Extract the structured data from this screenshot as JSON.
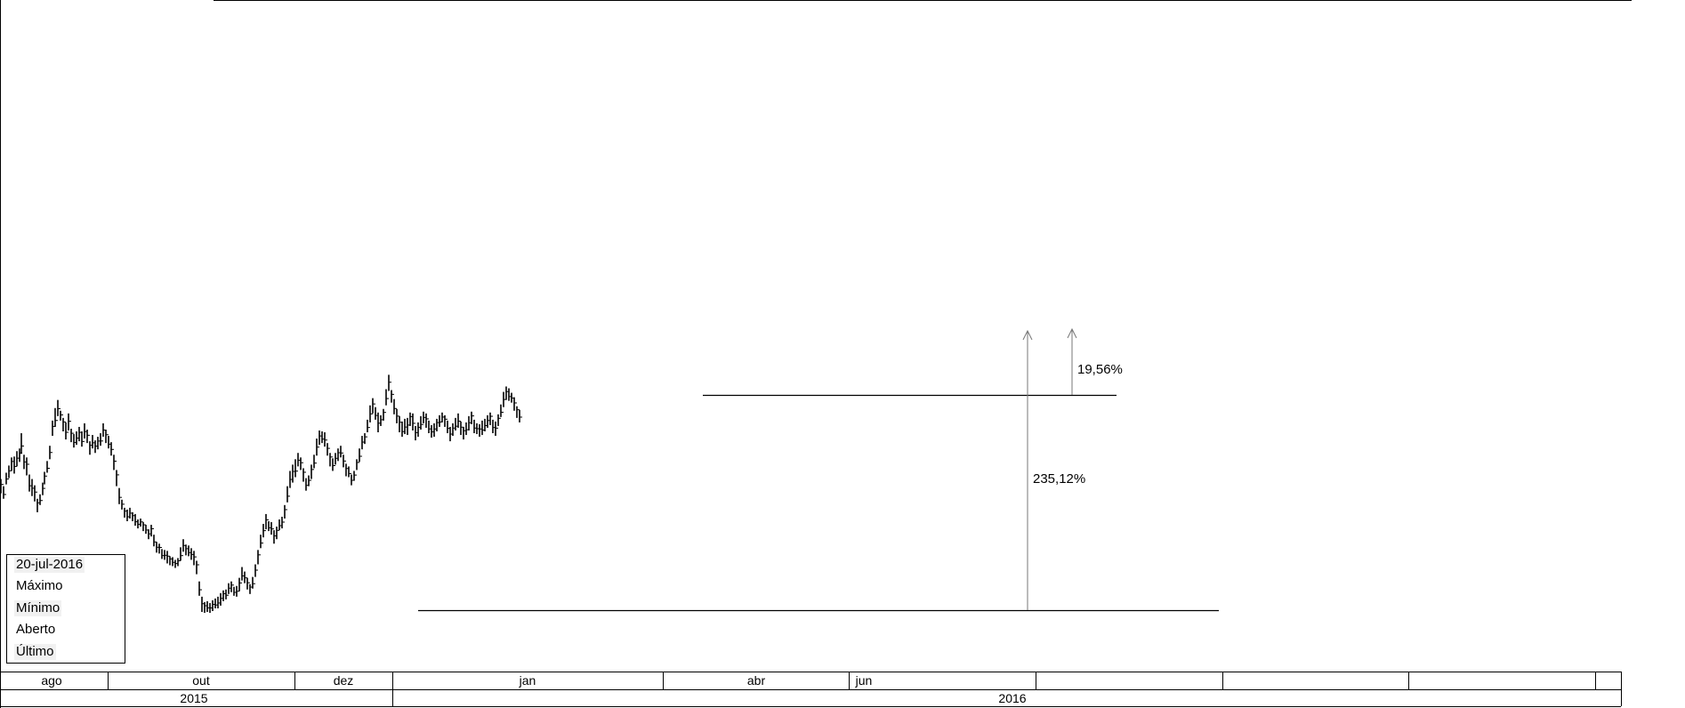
{
  "chart_data": {
    "type": "ohlc",
    "series": [
      {
        "points": [
          [
            -3.0,
            1.29,
            1.48
          ],
          [
            -2.6,
            1.45,
            1.62
          ],
          [
            -2.2,
            1.4,
            1.57
          ],
          [
            -1.8,
            1.27,
            1.4
          ],
          [
            -1.4,
            1.3,
            1.42
          ],
          [
            -1.0,
            1.28,
            1.43
          ],
          [
            -0.7,
            1.3,
            1.46
          ],
          [
            -0.4,
            1.24,
            1.38
          ],
          [
            -0.1,
            1.4,
            1.53
          ],
          [
            0.2,
            1.47,
            1.61
          ],
          [
            0.5,
            1.55,
            1.7
          ],
          [
            0.8,
            1.52,
            1.71
          ],
          [
            1.1,
            1.6,
            1.77
          ],
          [
            1.4,
            1.65,
            1.8
          ],
          [
            1.6,
            1.74,
            1.97
          ],
          [
            1.9,
            1.57,
            1.73
          ],
          [
            2.2,
            1.5,
            1.7
          ],
          [
            2.5,
            1.32,
            1.51
          ],
          [
            2.8,
            1.27,
            1.46
          ],
          [
            3.1,
            1.21,
            1.39
          ],
          [
            3.4,
            1.09,
            1.24
          ],
          [
            3.7,
            1.17,
            1.29
          ],
          [
            4.0,
            1.28,
            1.42
          ],
          [
            4.2,
            1.4,
            1.54
          ],
          [
            4.5,
            1.53,
            1.66
          ],
          [
            4.8,
            1.68,
            1.83
          ],
          [
            5.1,
            1.94,
            2.11
          ],
          [
            5.4,
            2.04,
            2.25
          ],
          [
            5.7,
            2.16,
            2.34
          ],
          [
            6.0,
            2.11,
            2.22
          ],
          [
            6.3,
            1.99,
            2.14
          ],
          [
            6.6,
            1.9,
            2.09
          ],
          [
            6.9,
            2.0,
            2.19
          ],
          [
            7.2,
            1.87,
            2.02
          ],
          [
            7.5,
            1.81,
            1.96
          ],
          [
            7.8,
            1.84,
            1.99
          ],
          [
            8.1,
            1.88,
            2.04
          ],
          [
            8.4,
            1.82,
            1.99
          ],
          [
            8.7,
            1.91,
            2.08
          ],
          [
            9.0,
            1.86,
            2.01
          ],
          [
            9.3,
            1.73,
            1.88
          ],
          [
            9.6,
            1.8,
            1.95
          ],
          [
            9.9,
            1.75,
            1.89
          ],
          [
            10.2,
            1.79,
            1.93
          ],
          [
            10.5,
            1.83,
            1.97
          ],
          [
            10.8,
            1.93,
            2.08
          ],
          [
            11.1,
            1.86,
            2.01
          ],
          [
            11.4,
            1.8,
            1.94
          ],
          [
            11.7,
            1.72,
            1.87
          ],
          [
            12.0,
            1.56,
            1.73
          ],
          [
            12.3,
            1.38,
            1.56
          ],
          [
            12.6,
            1.18,
            1.36
          ],
          [
            12.9,
            1.12,
            1.23
          ],
          [
            13.2,
            1.03,
            1.14
          ],
          [
            13.5,
            0.99,
            1.12
          ],
          [
            13.8,
            1.02,
            1.14
          ],
          [
            14.1,
            0.99,
            1.09
          ],
          [
            14.4,
            0.94,
            1.07
          ],
          [
            14.7,
            0.91,
            1.01
          ],
          [
            15.0,
            0.93,
            1.02
          ],
          [
            15.3,
            0.88,
            0.98
          ],
          [
            15.6,
            0.85,
            0.95
          ],
          [
            15.9,
            0.79,
            0.9
          ],
          [
            16.2,
            0.82,
            0.95
          ],
          [
            16.5,
            0.71,
            0.84
          ],
          [
            16.8,
            0.64,
            0.76
          ],
          [
            17.1,
            0.63,
            0.74
          ],
          [
            17.4,
            0.57,
            0.68
          ],
          [
            17.7,
            0.56,
            0.67
          ],
          [
            18.0,
            0.52,
            0.66
          ],
          [
            18.3,
            0.5,
            0.6
          ],
          [
            18.6,
            0.49,
            0.59
          ],
          [
            18.9,
            0.47,
            0.56
          ],
          [
            19.2,
            0.49,
            0.58
          ],
          [
            19.5,
            0.55,
            0.7
          ],
          [
            19.8,
            0.65,
            0.79
          ],
          [
            20.1,
            0.61,
            0.73
          ],
          [
            20.4,
            0.6,
            0.72
          ],
          [
            20.7,
            0.56,
            0.69
          ],
          [
            21.0,
            0.5,
            0.66
          ],
          [
            21.3,
            0.4,
            0.55
          ],
          [
            21.6,
            0.16,
            0.32
          ],
          [
            21.9,
            -0.02,
            0.15
          ],
          [
            22.2,
            -0.03,
            0.09
          ],
          [
            22.5,
            -0.02,
            0.1
          ],
          [
            22.8,
            -0.03,
            0.08
          ],
          [
            23.1,
            -0.01,
            0.11
          ],
          [
            23.4,
            0.02,
            0.13
          ],
          [
            23.7,
            0.02,
            0.15
          ],
          [
            24.0,
            0.05,
            0.19
          ],
          [
            24.3,
            0.1,
            0.22
          ],
          [
            24.6,
            0.12,
            0.23
          ],
          [
            24.9,
            0.18,
            0.3
          ],
          [
            25.2,
            0.2,
            0.32
          ],
          [
            25.5,
            0.16,
            0.26
          ],
          [
            25.8,
            0.15,
            0.27
          ],
          [
            26.1,
            0.21,
            0.36
          ],
          [
            26.4,
            0.33,
            0.48
          ],
          [
            26.7,
            0.3,
            0.43
          ],
          [
            27.0,
            0.23,
            0.36
          ],
          [
            27.3,
            0.18,
            0.29
          ],
          [
            27.6,
            0.24,
            0.37
          ],
          [
            27.9,
            0.37,
            0.51
          ],
          [
            28.2,
            0.51,
            0.67
          ],
          [
            28.5,
            0.69,
            0.84
          ],
          [
            28.8,
            0.81,
            0.96
          ],
          [
            29.1,
            0.9,
            1.07
          ],
          [
            29.4,
            0.88,
            0.99
          ],
          [
            29.7,
            0.84,
            0.98
          ],
          [
            30.0,
            0.74,
            0.89
          ],
          [
            30.3,
            0.79,
            0.93
          ],
          [
            30.6,
            0.89,
            1.01
          ],
          [
            30.9,
            0.91,
            1.04
          ],
          [
            31.2,
            1.02,
            1.17
          ],
          [
            31.5,
            1.2,
            1.38
          ],
          [
            31.8,
            1.36,
            1.55
          ],
          [
            32.1,
            1.42,
            1.62
          ],
          [
            32.4,
            1.48,
            1.68
          ],
          [
            32.7,
            1.6,
            1.75
          ],
          [
            33.0,
            1.56,
            1.7
          ],
          [
            33.3,
            1.43,
            1.58
          ],
          [
            33.6,
            1.33,
            1.47
          ],
          [
            33.9,
            1.38,
            1.5
          ],
          [
            34.2,
            1.46,
            1.62
          ],
          [
            34.5,
            1.58,
            1.73
          ],
          [
            34.8,
            1.72,
            1.91
          ],
          [
            35.1,
            1.84,
            2.0
          ],
          [
            35.4,
            1.86,
            1.99
          ],
          [
            35.7,
            1.82,
            1.98
          ],
          [
            36.0,
            1.72,
            1.86
          ],
          [
            36.3,
            1.6,
            1.75
          ],
          [
            36.6,
            1.55,
            1.69
          ],
          [
            36.9,
            1.62,
            1.75
          ],
          [
            37.2,
            1.66,
            1.8
          ],
          [
            37.5,
            1.7,
            1.83
          ],
          [
            37.8,
            1.59,
            1.73
          ],
          [
            38.1,
            1.49,
            1.63
          ],
          [
            38.4,
            1.48,
            1.6
          ],
          [
            38.7,
            1.39,
            1.51
          ],
          [
            39.0,
            1.44,
            1.55
          ],
          [
            39.3,
            1.56,
            1.68
          ],
          [
            39.6,
            1.65,
            1.8
          ],
          [
            39.9,
            1.79,
            1.94
          ],
          [
            40.2,
            1.85,
            1.97
          ],
          [
            40.5,
            1.98,
            2.12
          ],
          [
            40.8,
            2.09,
            2.28
          ],
          [
            41.1,
            2.19,
            2.36
          ],
          [
            41.4,
            2.12,
            2.26
          ],
          [
            41.7,
            1.98,
            2.2
          ],
          [
            42.0,
            2.05,
            2.17
          ],
          [
            42.3,
            2.11,
            2.24
          ],
          [
            42.6,
            2.28,
            2.46
          ],
          [
            42.9,
            2.44,
            2.62
          ],
          [
            43.2,
            2.31,
            2.45
          ],
          [
            43.5,
            2.18,
            2.35
          ],
          [
            43.8,
            2.08,
            2.24
          ],
          [
            44.1,
            1.98,
            2.16
          ],
          [
            44.4,
            1.93,
            2.1
          ],
          [
            44.7,
            1.96,
            2.13
          ],
          [
            45.0,
            1.95,
            2.14
          ],
          [
            45.3,
            2.05,
            2.2
          ],
          [
            45.6,
            2.0,
            2.19
          ],
          [
            45.9,
            1.89,
            2.05
          ],
          [
            46.2,
            1.93,
            2.09
          ],
          [
            46.5,
            2.01,
            2.16
          ],
          [
            46.8,
            2.08,
            2.21
          ],
          [
            47.1,
            2.03,
            2.19
          ],
          [
            47.4,
            1.97,
            2.11
          ],
          [
            47.7,
            1.92,
            2.06
          ],
          [
            48.0,
            1.93,
            2.08
          ],
          [
            48.3,
            1.99,
            2.13
          ],
          [
            48.6,
            2.04,
            2.17
          ],
          [
            48.9,
            2.09,
            2.2
          ],
          [
            49.2,
            2.04,
            2.17
          ],
          [
            49.5,
            1.97,
            2.11
          ],
          [
            49.8,
            1.88,
            2.04
          ],
          [
            50.1,
            1.94,
            2.08
          ],
          [
            50.4,
            2.0,
            2.14
          ],
          [
            50.7,
            2.03,
            2.19
          ],
          [
            51.0,
            1.95,
            2.1
          ],
          [
            51.3,
            1.9,
            2.04
          ],
          [
            51.6,
            1.95,
            2.09
          ],
          [
            51.9,
            2.0,
            2.16
          ],
          [
            52.2,
            2.07,
            2.21
          ],
          [
            52.5,
            1.97,
            2.12
          ],
          [
            52.8,
            1.96,
            2.08
          ],
          [
            53.1,
            1.93,
            2.07
          ],
          [
            53.4,
            1.95,
            2.11
          ],
          [
            53.7,
            1.99,
            2.13
          ],
          [
            54.0,
            2.03,
            2.17
          ],
          [
            54.3,
            2.06,
            2.2
          ],
          [
            54.6,
            1.97,
            2.12
          ],
          [
            54.9,
            1.94,
            2.1
          ],
          [
            55.2,
            2.05,
            2.18
          ],
          [
            55.5,
            2.15,
            2.29
          ],
          [
            55.8,
            2.26,
            2.43
          ],
          [
            56.1,
            2.34,
            2.49
          ],
          [
            56.4,
            2.33,
            2.47
          ],
          [
            56.7,
            2.31,
            2.42
          ],
          [
            57.0,
            2.22,
            2.37
          ],
          [
            57.3,
            2.14,
            2.27
          ],
          [
            57.6,
            2.09,
            2.23
          ]
        ]
      }
    ],
    "x_axis": {
      "months": [
        "ago",
        "out",
        "dez",
        "jan",
        "abr",
        "jun",
        "",
        "",
        "",
        ""
      ],
      "years": [
        "2015",
        "2016"
      ]
    },
    "annotations": [
      {
        "label": "19,56%"
      },
      {
        "label": "235,12%"
      }
    ],
    "legend_box": {
      "date": "20-jul-2016",
      "rows": [
        "Máximo",
        "Mínimo",
        "Aberto",
        "Último"
      ]
    }
  }
}
